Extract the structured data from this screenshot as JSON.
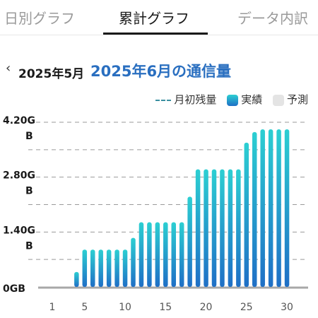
{
  "tabs": [
    {
      "label": "日別グラフ",
      "active": false
    },
    {
      "label": "累計グラフ",
      "active": true
    },
    {
      "label": "データ内訳",
      "active": false
    }
  ],
  "header": {
    "prev_month": "2025年5月",
    "current_title": "2025年6月の通信量"
  },
  "legend": {
    "remaining": "月初残量",
    "actual": "実績",
    "forecast": "予測"
  },
  "colors": {
    "bar_top": "#2ccfd2",
    "bar_bottom": "#1f6fc6",
    "forecast": "#e4e4e4",
    "remaining_line": "#3a8fa0",
    "title_accent": "#2a6fc0"
  },
  "chart_data": {
    "type": "bar",
    "title": "2025年6月の通信量",
    "x": [
      1,
      2,
      3,
      4,
      5,
      6,
      7,
      8,
      9,
      10,
      11,
      12,
      13,
      14,
      15,
      16,
      17,
      18,
      19,
      20,
      21,
      22,
      23,
      24,
      25,
      26,
      27,
      28,
      29,
      30
    ],
    "x_tick_labels": [
      "1",
      "5",
      "10",
      "15",
      "20",
      "25",
      "30"
    ],
    "x_tick_values": [
      1,
      5,
      10,
      15,
      20,
      25,
      30
    ],
    "y_tick_labels": [
      "4.20G\nB",
      "2.80G\nB",
      "1.40G\nB",
      "0GB"
    ],
    "y_tick_values": [
      4.2,
      2.8,
      1.4,
      0
    ],
    "ylim": [
      0,
      4.2
    ],
    "grid": true,
    "unit": "GB",
    "series": [
      {
        "name": "実績",
        "values": [
          0,
          0,
          0,
          0.38,
          0.95,
          0.95,
          0.95,
          0.95,
          0.95,
          0.95,
          1.25,
          1.65,
          1.65,
          1.65,
          1.65,
          1.65,
          1.65,
          2.3,
          3.0,
          3.0,
          3.0,
          3.0,
          3.0,
          3.0,
          3.68,
          3.95,
          4.02,
          4.02,
          4.02,
          4.02
        ]
      }
    ]
  }
}
